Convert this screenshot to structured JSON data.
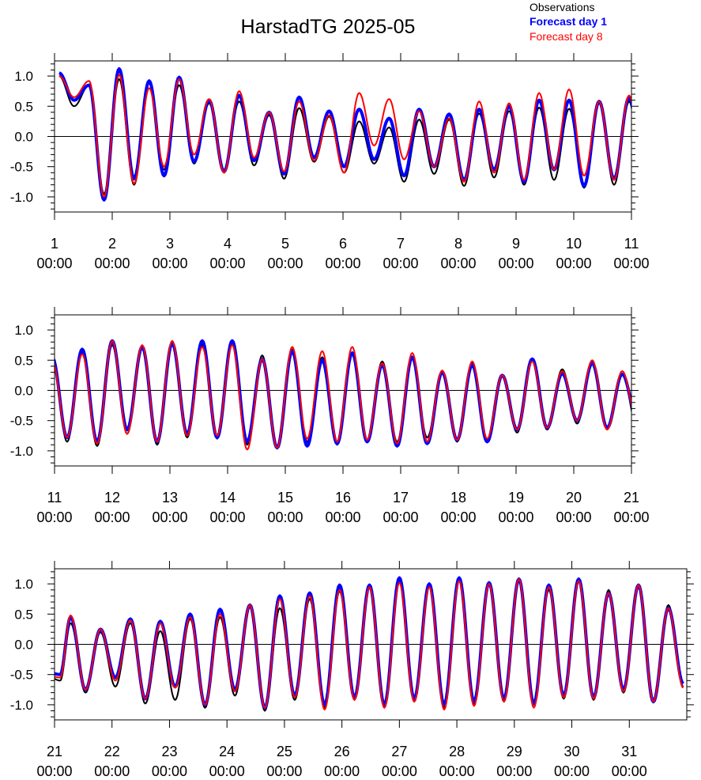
{
  "chart_data": {
    "type": "line",
    "title": "HarstadTG 2025-05",
    "legend": {
      "placement": "top-right",
      "entries": [
        {
          "name": "Observations",
          "color": "#000000",
          "bold": false
        },
        {
          "name": "Forecast day 1",
          "color": "#0000ff",
          "bold": true
        },
        {
          "name": "Forecast day 8",
          "color": "#ff0000",
          "bold": false
        }
      ]
    },
    "colors": {
      "observations": "#000000",
      "forecast_day_1": "#0000ff",
      "forecast_day_8": "#ff0000"
    },
    "ylim": [
      -1.25,
      1.25
    ],
    "yticks": [
      "1.0",
      "0.5",
      "0.0",
      "-0.5",
      "-1.0"
    ],
    "ytick_values": [
      1.0,
      0.5,
      0.0,
      -0.5,
      -1.0
    ],
    "zero_line": true,
    "tidal_period_days": 0.5175,
    "panels": [
      {
        "xlim": [
          1,
          11
        ],
        "xticks": [
          {
            "day": "1",
            "time": "00:00"
          },
          {
            "day": "2",
            "time": "00:00"
          },
          {
            "day": "3",
            "time": "00:00"
          },
          {
            "day": "4",
            "time": "00:00"
          },
          {
            "day": "5",
            "time": "00:00"
          },
          {
            "day": "6",
            "time": "00:00"
          },
          {
            "day": "7",
            "time": "00:00"
          },
          {
            "day": "8",
            "time": "00:00"
          },
          {
            "day": "9",
            "time": "00:00"
          },
          {
            "day": "10",
            "time": "00:00"
          },
          {
            "day": "11",
            "time": "00:00"
          }
        ],
        "high_times": [
          1.08,
          1.6,
          2.12,
          2.64,
          3.16,
          3.68,
          4.2,
          4.72,
          5.24,
          5.76,
          6.28,
          6.8,
          7.32,
          7.84,
          8.36,
          8.88,
          9.4,
          9.92,
          10.44,
          10.96
        ],
        "observations": {
          "highs": [
            1.0,
            0.85,
            0.95,
            0.88,
            0.85,
            0.55,
            0.58,
            0.35,
            0.47,
            0.33,
            0.25,
            0.15,
            0.28,
            0.28,
            0.38,
            0.42,
            0.48,
            0.46,
            0.55,
            0.58
          ],
          "lows": [
            0.5,
            -0.95,
            -0.8,
            -0.55,
            -0.45,
            -0.6,
            -0.48,
            -0.7,
            -0.42,
            -0.6,
            -0.45,
            -0.75,
            -0.62,
            -0.82,
            -0.68,
            -0.8,
            -0.72,
            -0.85,
            -0.8,
            -0.95
          ]
        },
        "forecast_day_1": {
          "highs": [
            1.05,
            0.85,
            1.12,
            0.92,
            0.98,
            0.6,
            0.68,
            0.4,
            0.65,
            0.42,
            0.45,
            0.3,
            0.45,
            0.37,
            0.45,
            0.5,
            0.6,
            0.6,
            0.58,
            0.65
          ],
          "lows": [
            0.6,
            -1.05,
            -0.7,
            -0.65,
            -0.42,
            -0.58,
            -0.4,
            -0.62,
            -0.35,
            -0.5,
            -0.38,
            -0.65,
            -0.5,
            -0.72,
            -0.55,
            -0.75,
            -0.55,
            -0.82,
            -0.7,
            -0.88
          ]
        },
        "forecast_day_8": {
          "highs": [
            1.0,
            0.92,
            1.02,
            0.8,
            0.95,
            0.62,
            0.75,
            0.4,
            0.58,
            0.35,
            0.72,
            0.62,
            0.42,
            0.3,
            0.58,
            0.55,
            0.72,
            0.78,
            0.58,
            0.68
          ],
          "lows": [
            0.65,
            -1.0,
            -0.78,
            -0.5,
            -0.3,
            -0.6,
            -0.35,
            -0.58,
            -0.4,
            -0.6,
            -0.15,
            -0.38,
            -0.5,
            -0.75,
            -0.6,
            -0.72,
            -0.55,
            -0.65,
            -0.72,
            -0.88
          ]
        }
      },
      {
        "xlim": [
          11,
          21
        ],
        "xticks": [
          {
            "day": "11",
            "time": "00:00"
          },
          {
            "day": "12",
            "time": "00:00"
          },
          {
            "day": "13",
            "time": "00:00"
          },
          {
            "day": "14",
            "time": "00:00"
          },
          {
            "day": "15",
            "time": "00:00"
          },
          {
            "day": "16",
            "time": "00:00"
          },
          {
            "day": "17",
            "time": "00:00"
          },
          {
            "day": "18",
            "time": "00:00"
          },
          {
            "day": "19",
            "time": "00:00"
          },
          {
            "day": "20",
            "time": "00:00"
          },
          {
            "day": "21",
            "time": "00:00"
          }
        ],
        "high_times": [
          10.96,
          11.48,
          12.0,
          12.52,
          13.04,
          13.56,
          14.08,
          14.6,
          15.12,
          15.64,
          16.16,
          16.68,
          17.2,
          17.72,
          18.24,
          18.76,
          19.28,
          19.8,
          20.32,
          20.84
        ],
        "observations": {
          "highs": [
            0.5,
            0.62,
            0.75,
            0.7,
            0.75,
            0.75,
            0.78,
            0.58,
            0.68,
            0.55,
            0.6,
            0.48,
            0.55,
            0.3,
            0.45,
            0.25,
            0.5,
            0.35,
            0.48,
            0.27
          ],
          "lows": [
            -0.85,
            -0.92,
            -0.72,
            -0.9,
            -0.78,
            -0.8,
            -0.9,
            -0.95,
            -0.85,
            -0.9,
            -0.82,
            -0.85,
            -0.78,
            -0.85,
            -0.82,
            -0.7,
            -0.65,
            -0.55,
            -0.6,
            -0.6
          ]
        },
        "forecast_day_1": {
          "highs": [
            0.55,
            0.68,
            0.82,
            0.72,
            0.78,
            0.82,
            0.82,
            0.52,
            0.65,
            0.5,
            0.62,
            0.42,
            0.55,
            0.3,
            0.42,
            0.25,
            0.52,
            0.28,
            0.45,
            0.27
          ],
          "lows": [
            -0.78,
            -0.85,
            -0.65,
            -0.85,
            -0.72,
            -0.78,
            -0.85,
            -0.95,
            -0.92,
            -0.88,
            -0.85,
            -0.92,
            -0.88,
            -0.82,
            -0.85,
            -0.65,
            -0.62,
            -0.5,
            -0.62,
            -0.45
          ]
        },
        "forecast_day_8": {
          "highs": [
            0.5,
            0.6,
            0.82,
            0.75,
            0.82,
            0.72,
            0.75,
            0.52,
            0.72,
            0.65,
            0.72,
            0.45,
            0.62,
            0.33,
            0.48,
            0.25,
            0.48,
            0.32,
            0.5,
            0.32
          ],
          "lows": [
            -0.78,
            -0.88,
            -0.72,
            -0.85,
            -0.75,
            -0.75,
            -0.98,
            -0.95,
            -0.8,
            -0.85,
            -0.82,
            -0.88,
            -0.85,
            -0.82,
            -0.8,
            -0.65,
            -0.62,
            -0.5,
            -0.65,
            -0.5
          ]
        }
      },
      {
        "xlim": [
          21,
          32
        ],
        "xticks": [
          {
            "day": "21",
            "time": "00:00"
          },
          {
            "day": "22",
            "time": "00:00"
          },
          {
            "day": "23",
            "time": "00:00"
          },
          {
            "day": "24",
            "time": "00:00"
          },
          {
            "day": "25",
            "time": "00:00"
          },
          {
            "day": "26",
            "time": "00:00"
          },
          {
            "day": "27",
            "time": "00:00"
          },
          {
            "day": "28",
            "time": "00:00"
          },
          {
            "day": "29",
            "time": "00:00"
          },
          {
            "day": "30",
            "time": "00:00"
          },
          {
            "day": "31",
            "time": "00:00"
          }
        ],
        "high_times": [
          20.84,
          21.28,
          21.8,
          22.32,
          22.84,
          23.36,
          23.88,
          24.4,
          24.92,
          25.44,
          25.96,
          26.48,
          27.0,
          27.52,
          28.04,
          28.56,
          29.08,
          29.6,
          30.12,
          30.64,
          31.16,
          31.68
        ],
        "observations": {
          "highs": [
            -0.5,
            0.35,
            0.2,
            0.35,
            0.22,
            0.42,
            0.45,
            0.62,
            0.6,
            0.75,
            0.88,
            0.95,
            1.05,
            1.0,
            1.1,
            1.0,
            1.05,
            0.9,
            1.05,
            0.9,
            0.95,
            0.65
          ],
          "lows": [
            -0.6,
            -0.8,
            -0.7,
            -0.98,
            -0.92,
            -1.05,
            -0.85,
            -1.1,
            -0.92,
            -1.05,
            -0.92,
            -1.05,
            -0.95,
            -1.05,
            -1.0,
            -0.95,
            -1.0,
            -0.9,
            -0.92,
            -0.8,
            -0.95,
            -0.7
          ]
        },
        "forecast_day_1": {
          "highs": [
            -0.45,
            0.45,
            0.25,
            0.42,
            0.38,
            0.5,
            0.58,
            0.65,
            0.8,
            0.85,
            0.98,
            0.98,
            1.1,
            1.0,
            1.1,
            1.02,
            1.08,
            0.98,
            1.08,
            0.85,
            0.98,
            0.6
          ],
          "lows": [
            -0.5,
            -0.75,
            -0.55,
            -0.9,
            -0.7,
            -1.0,
            -0.75,
            -1.05,
            -0.85,
            -1.0,
            -0.88,
            -1.0,
            -0.9,
            -1.0,
            -0.95,
            -0.9,
            -0.98,
            -0.85,
            -0.88,
            -0.75,
            -0.95,
            -0.65
          ]
        },
        "forecast_day_8": {
          "highs": [
            -0.5,
            0.48,
            0.25,
            0.4,
            0.35,
            0.45,
            0.5,
            0.65,
            0.75,
            0.8,
            0.9,
            0.95,
            1.02,
            0.95,
            1.05,
            1.0,
            1.08,
            0.95,
            1.05,
            0.85,
            0.98,
            0.6
          ],
          "lows": [
            -0.55,
            -0.75,
            -0.6,
            -0.9,
            -0.72,
            -1.0,
            -0.78,
            -1.05,
            -0.88,
            -1.08,
            -0.92,
            -1.05,
            -0.95,
            -1.08,
            -1.02,
            -0.95,
            -1.05,
            -0.88,
            -0.9,
            -0.78,
            -0.95,
            -0.72
          ]
        }
      }
    ]
  }
}
